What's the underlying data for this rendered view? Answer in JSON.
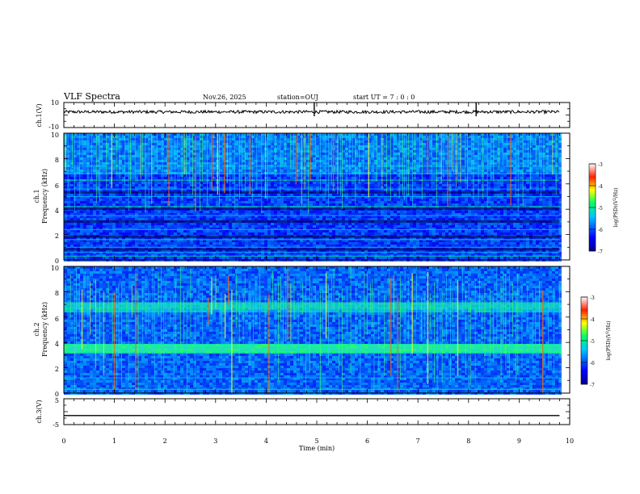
{
  "header": {
    "title": "VLF Spectra",
    "date": "Nov.26, 2025",
    "station": "station=OUJ",
    "start": "start  UT =   7 : 0  : 0"
  },
  "chart_data": [
    {
      "type": "line",
      "title": "ch.1 waveform",
      "ylabel": "ch.1(V)",
      "ylim": [
        -10,
        10
      ],
      "yticks": [
        10,
        -10
      ],
      "series": [
        {
          "name": "ch.1",
          "approx_level": 2.5,
          "noise_amplitude": 1.2,
          "spike_times_min": [
            4.95,
            8.15
          ]
        }
      ]
    },
    {
      "type": "heatmap",
      "title": "ch.1 spectrogram",
      "ylabel": "ch.1 Frequency (kHz)",
      "xlim": [
        0,
        9.8
      ],
      "ylim": [
        0,
        10
      ],
      "yticks": [
        0,
        2,
        4,
        6,
        8,
        10
      ],
      "colorbar": {
        "label": "log(PSD)(V^2/Hz)",
        "range": [
          -7,
          -3
        ],
        "ticks": [
          -3,
          -4,
          -5,
          -6,
          -7
        ]
      },
      "bands_khz": [
        0.3,
        0.6,
        1.0,
        1.6,
        2.4,
        3.5,
        4.2,
        5.0,
        5.6,
        6.3,
        6.8,
        7.4
      ]
    },
    {
      "type": "heatmap",
      "title": "ch.2 spectrogram",
      "ylabel": "ch.2 Frequency (kHz)",
      "xlim": [
        0,
        9.8
      ],
      "ylim": [
        0,
        10
      ],
      "yticks": [
        0,
        2,
        4,
        6,
        8,
        10
      ],
      "colorbar": {
        "label": "log(PSD)(V^2/Hz)",
        "range": [
          -7,
          -3
        ],
        "ticks": [
          -3,
          -4,
          -5,
          -6,
          -7
        ]
      },
      "bands_khz": [
        0.3,
        1.2,
        3.5,
        3.8,
        6.8,
        7.0
      ]
    },
    {
      "type": "line",
      "title": "ch.3 waveform",
      "ylabel": "ch.3(V)",
      "xlabel": "Time (min)",
      "xlim": [
        0,
        10
      ],
      "ylim": [
        -5,
        5
      ],
      "yticks": [
        5,
        -5
      ],
      "xticks": [
        0,
        1,
        2,
        3,
        4,
        5,
        6,
        7,
        8,
        9,
        10
      ],
      "series": [
        {
          "name": "ch.3",
          "x": [
            0,
            9.8
          ],
          "y": [
            -1.5,
            -1.5
          ]
        }
      ]
    }
  ],
  "labels": {
    "ch1v": "ch.1(V)",
    "ch3v": "ch.3(V)",
    "ch1": "ch.1",
    "ch2": "ch.2",
    "freq": "Frequency (kHz)",
    "xlabel": "Time (min)",
    "cb_label": "log(PSD)(V",
    "cb_label_sup": "2",
    "cb_label_tail": "/Hz)"
  },
  "ticklabels": {
    "wave1": [
      "10",
      "-10"
    ],
    "spec": [
      "10",
      "8",
      "6",
      "4",
      "2",
      "0"
    ],
    "wave3": [
      "5",
      "-5"
    ],
    "x": [
      "0",
      "1",
      "2",
      "3",
      "4",
      "5",
      "6",
      "7",
      "8",
      "9",
      "10"
    ],
    "cb": [
      "-3",
      "-4",
      "-5",
      "-6",
      "-7"
    ]
  }
}
